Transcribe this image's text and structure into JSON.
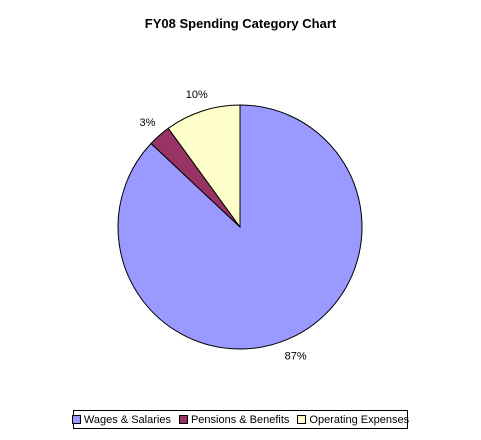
{
  "chart_data": {
    "type": "pie",
    "title": "FY08 Spending Category Chart",
    "categories": [
      "Wages & Salaries",
      "Pensions & Benefits",
      "Operating Expenses"
    ],
    "values": [
      87,
      3,
      10
    ],
    "labels": [
      "87%",
      "3%",
      "10%"
    ],
    "colors": [
      "#9999ff",
      "#993366",
      "#ffffcc"
    ],
    "start_angle_deg": 0,
    "direction": "clockwise",
    "legend_position": "bottom"
  }
}
